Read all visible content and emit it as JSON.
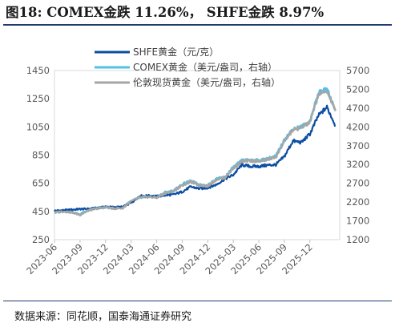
{
  "header": {
    "title": "图18:  COMEX金跌 11.26%，  SHFE金跌 8.97%"
  },
  "footer": {
    "source": "数据来源：同花顺，国泰海通证券研究"
  },
  "colors": {
    "shfe": "#0b4ea2",
    "comex": "#52c0e8",
    "london": "#a6a6a6",
    "rule": "#1f3a6e"
  },
  "chart_data": {
    "type": "line",
    "title": "",
    "x_ticks": [
      "2023-06",
      "2023-09",
      "2023-12",
      "2024-03",
      "2024-06",
      "2024-09",
      "2024-12",
      "2025-03",
      "2025-06",
      "2025-09",
      "2025-12"
    ],
    "left_axis": {
      "ticks": [
        250,
        450,
        650,
        850,
        1050,
        1250,
        1450
      ],
      "range": [
        250,
        1450
      ]
    },
    "right_axis": {
      "ticks": [
        1200,
        1700,
        2200,
        2700,
        3200,
        3700,
        4200,
        4700,
        5200,
        5700
      ],
      "range": [
        1200,
        5700
      ]
    },
    "legend_position": "top-left",
    "series": [
      {
        "name": "SHFE黄金（元/克）",
        "axis": "left",
        "points": [
          [
            "2023-06",
            455
          ],
          [
            "2023-07",
            458
          ],
          [
            "2023-08",
            462
          ],
          [
            "2023-09",
            467
          ],
          [
            "2023-10",
            468
          ],
          [
            "2023-11",
            475
          ],
          [
            "2023-12",
            482
          ],
          [
            "2024-01",
            480
          ],
          [
            "2024-02",
            482
          ],
          [
            "2024-03",
            510
          ],
          [
            "2024-04",
            560
          ],
          [
            "2024-05",
            562
          ],
          [
            "2024-06",
            557
          ],
          [
            "2024-07",
            565
          ],
          [
            "2024-08",
            570
          ],
          [
            "2024-09",
            590
          ],
          [
            "2024-10",
            625
          ],
          [
            "2024-11",
            612
          ],
          [
            "2024-12",
            618
          ],
          [
            "2025-01",
            640
          ],
          [
            "2025-02",
            680
          ],
          [
            "2025-03",
            710
          ],
          [
            "2025-04",
            780
          ],
          [
            "2025-05",
            770
          ],
          [
            "2025-06",
            770
          ],
          [
            "2025-07",
            778
          ],
          [
            "2025-08",
            782
          ],
          [
            "2025-09",
            840
          ],
          [
            "2025-10",
            950
          ],
          [
            "2025-11",
            940
          ],
          [
            "2025-12",
            1000
          ],
          [
            "2026-01",
            1130
          ],
          [
            "2026-02",
            1190
          ],
          [
            "2026-03",
            1060
          ]
        ]
      },
      {
        "name": "COMEX黄金（美元/盎司，右轴）",
        "axis": "right",
        "points": [
          [
            "2023-06",
            1930
          ],
          [
            "2023-07",
            1960
          ],
          [
            "2023-08",
            1940
          ],
          [
            "2023-09",
            1870
          ],
          [
            "2023-10",
            1990
          ],
          [
            "2023-11",
            2040
          ],
          [
            "2023-12",
            2070
          ],
          [
            "2024-01",
            2040
          ],
          [
            "2024-02",
            2050
          ],
          [
            "2024-03",
            2230
          ],
          [
            "2024-04",
            2330
          ],
          [
            "2024-05",
            2350
          ],
          [
            "2024-06",
            2330
          ],
          [
            "2024-07",
            2450
          ],
          [
            "2024-08",
            2500
          ],
          [
            "2024-09",
            2670
          ],
          [
            "2024-10",
            2760
          ],
          [
            "2024-11",
            2660
          ],
          [
            "2024-12",
            2640
          ],
          [
            "2025-01",
            2810
          ],
          [
            "2025-02",
            2860
          ],
          [
            "2025-03",
            3120
          ],
          [
            "2025-04",
            3300
          ],
          [
            "2025-05",
            3320
          ],
          [
            "2025-06",
            3300
          ],
          [
            "2025-07",
            3350
          ],
          [
            "2025-08",
            3420
          ],
          [
            "2025-09",
            3850
          ],
          [
            "2025-10",
            4150
          ],
          [
            "2025-11",
            4200
          ],
          [
            "2025-12",
            4350
          ],
          [
            "2026-01",
            5100
          ],
          [
            "2026-02",
            5200
          ],
          [
            "2026-03",
            4650
          ]
        ]
      },
      {
        "name": "伦敦现货黄金（美元/盎司，右轴）",
        "axis": "right",
        "points": [
          [
            "2023-06",
            1920
          ],
          [
            "2023-07",
            1950
          ],
          [
            "2023-08",
            1930
          ],
          [
            "2023-09",
            1860
          ],
          [
            "2023-10",
            1980
          ],
          [
            "2023-11",
            2030
          ],
          [
            "2023-12",
            2060
          ],
          [
            "2024-01",
            2030
          ],
          [
            "2024-02",
            2040
          ],
          [
            "2024-03",
            2220
          ],
          [
            "2024-04",
            2320
          ],
          [
            "2024-05",
            2340
          ],
          [
            "2024-06",
            2320
          ],
          [
            "2024-07",
            2440
          ],
          [
            "2024-08",
            2490
          ],
          [
            "2024-09",
            2650
          ],
          [
            "2024-10",
            2740
          ],
          [
            "2024-11",
            2650
          ],
          [
            "2024-12",
            2630
          ],
          [
            "2025-01",
            2800
          ],
          [
            "2025-02",
            2850
          ],
          [
            "2025-03",
            3100
          ],
          [
            "2025-04",
            3280
          ],
          [
            "2025-05",
            3300
          ],
          [
            "2025-06",
            3290
          ],
          [
            "2025-07",
            3330
          ],
          [
            "2025-08",
            3400
          ],
          [
            "2025-09",
            3820
          ],
          [
            "2025-10",
            4120
          ],
          [
            "2025-11",
            4180
          ],
          [
            "2025-12",
            4320
          ],
          [
            "2026-01",
            5060
          ],
          [
            "2026-02",
            5160
          ],
          [
            "2026-03",
            4620
          ]
        ]
      }
    ]
  }
}
